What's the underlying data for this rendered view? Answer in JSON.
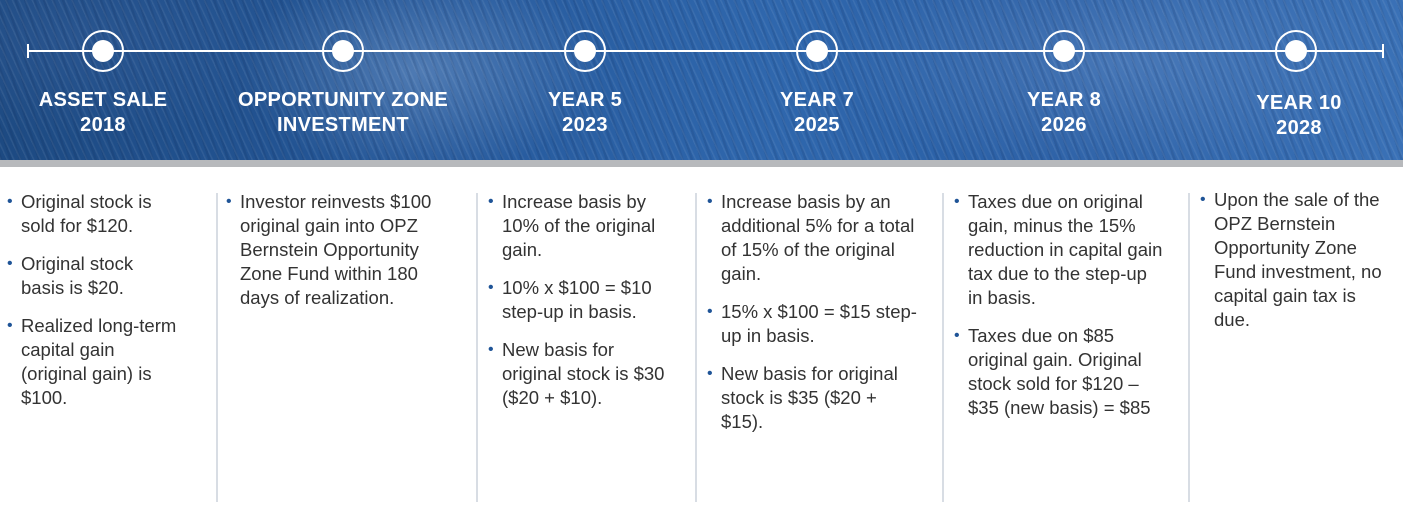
{
  "milestones": [
    {
      "line1": "ASSET SALE",
      "line2": "2018"
    },
    {
      "line1": "OPPORTUNITY ZONE",
      "line2": "INVESTMENT"
    },
    {
      "line1": "YEAR 5",
      "line2": "2023"
    },
    {
      "line1": "YEAR 7",
      "line2": "2025"
    },
    {
      "line1": "YEAR 8",
      "line2": "2026"
    },
    {
      "line1": "YEAR 10",
      "line2": "2028"
    }
  ],
  "columns": [
    {
      "bullets": [
        "Original stock is sold for $120.",
        "Original stock basis is $20.",
        "Realized long-term capital gain (original gain) is $100."
      ]
    },
    {
      "bullets": [
        "Investor reinvests $100 original gain into OPZ Bernstein Opportunity Zone Fund within 180 days of realization."
      ]
    },
    {
      "bullets": [
        "Increase basis by 10% of the original gain.",
        "10% x $100 = $10 step-up in basis.",
        "New basis for original stock is $30 ($20 + $10)."
      ]
    },
    {
      "bullets": [
        "Increase basis by an additional 5% for a total of 15% of the original gain.",
        "15% x $100 = $15 step-up in basis.",
        "New basis for original stock is $35 ($20 + $15)."
      ]
    },
    {
      "bullets": [
        "Taxes due on original gain, minus the 15% reduction in capital gain tax due to the step-up in basis.",
        "Taxes due on $85 original gain. Original stock sold for $120 – $35 (new basis) = $85"
      ]
    },
    {
      "bullets": [
        "Upon the sale of the OPZ Bernstein Opportunity Zone Fund investment, no capital gain tax is due."
      ]
    }
  ],
  "bullet_symbol": "•",
  "colors": {
    "banner_blue": "#2a5fa5",
    "bullet_blue": "#1f5497",
    "text": "#333333",
    "divider": "#d8dde4"
  }
}
